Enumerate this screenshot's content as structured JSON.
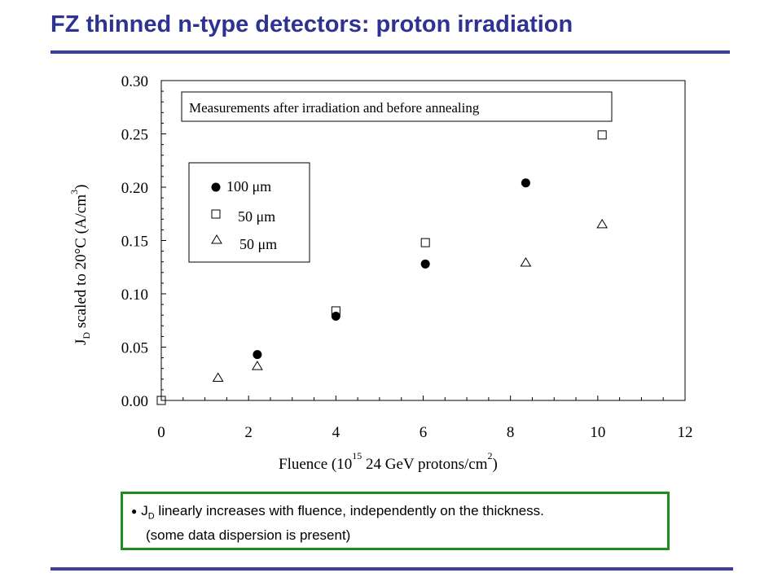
{
  "slide": {
    "title": "FZ thinned n-type detectors: proton irradiation"
  },
  "note": {
    "bullet": "●",
    "line1_prefix": "J",
    "line1_sub": "D",
    "line1_rest": " linearly increases with fluence, independently on the thickness.",
    "line2": "(some data dispersion is present)"
  },
  "chart_data": {
    "type": "scatter",
    "title": "",
    "annotation": "Measurements after irradiation and before annealing",
    "xlabel": {
      "pre": "Fluence (10",
      "sup": "15",
      "mid": " 24 GeV protons/cm",
      "sup2": "2",
      "post": ")"
    },
    "ylabel": {
      "pre": "J",
      "sub": "D",
      "mid": " scaled to 20°C (A/cm",
      "sup": "3",
      "post": ")"
    },
    "xlim": [
      0,
      12
    ],
    "ylim": [
      0,
      0.3
    ],
    "xticks": [
      "0",
      "2",
      "4",
      "6",
      "8",
      "10",
      "12"
    ],
    "yticks": [
      "0.00",
      "0.05",
      "0.10",
      "0.15",
      "0.20",
      "0.25",
      "0.30"
    ],
    "grid": false,
    "legend_position": "upper-left",
    "series": [
      {
        "name": "100 μm",
        "marker": "filled-circle",
        "color": "#000000",
        "x": [
          2.2,
          4.0,
          6.05,
          8.35
        ],
        "y": [
          0.043,
          0.079,
          0.128,
          0.204
        ]
      },
      {
        "name": "50 μm",
        "marker": "open-square",
        "color": "#000000",
        "x": [
          0.0,
          4.0,
          6.05,
          10.1
        ],
        "y": [
          0.0,
          0.084,
          0.148,
          0.249
        ]
      },
      {
        "name": "50 μm",
        "marker": "open-triangle",
        "color": "#000000",
        "x": [
          1.3,
          2.2,
          8.35,
          10.1
        ],
        "y": [
          0.021,
          0.032,
          0.129,
          0.165
        ]
      }
    ]
  }
}
